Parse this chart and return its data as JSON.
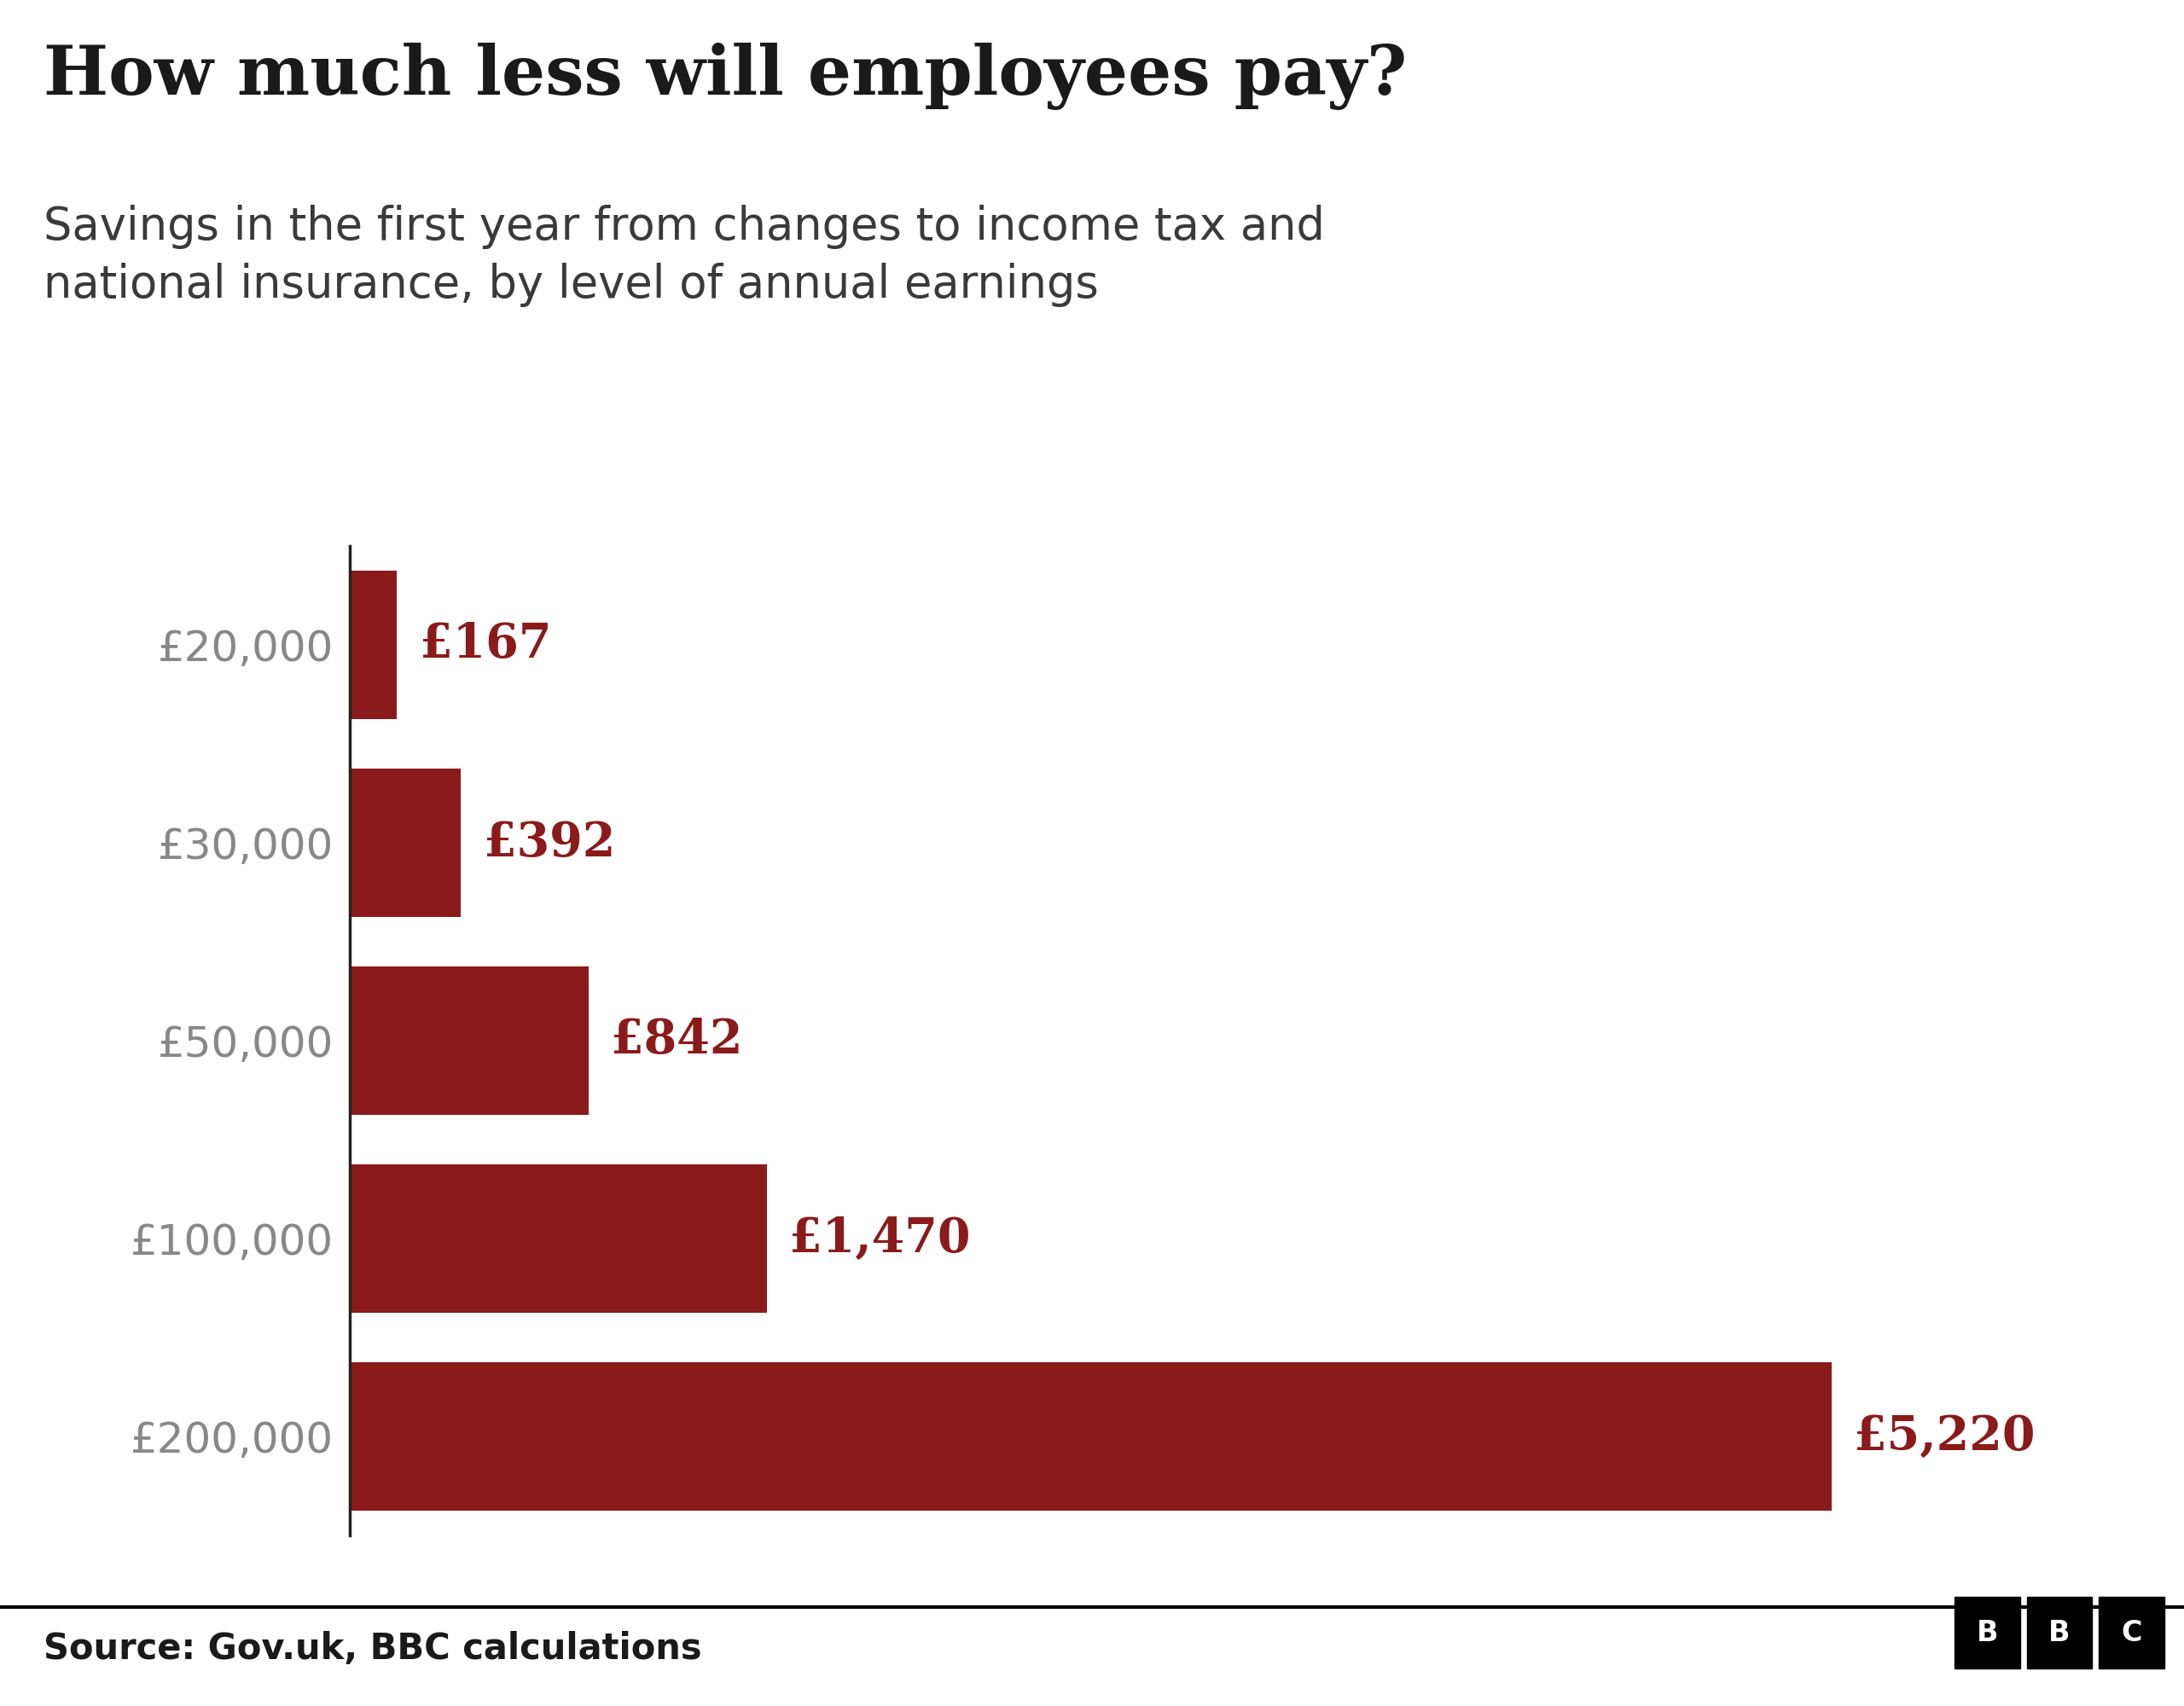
{
  "title": "How much less will employees pay?",
  "subtitle": "Savings in the first year from changes to income tax and\nnational insurance, by level of annual earnings",
  "categories": [
    "£20,000",
    "£30,000",
    "£50,000",
    "£100,000",
    "£200,000"
  ],
  "values": [
    167,
    392,
    842,
    1470,
    5220
  ],
  "value_labels": [
    "£167",
    "£392",
    "£842",
    "£1,470",
    "£5,220"
  ],
  "bar_color": "#8B1A1A",
  "label_color": "#8B1A1A",
  "title_color": "#1a1a1a",
  "subtitle_color": "#3a3a3a",
  "tick_color": "#888888",
  "source_text": "Source: Gov.uk, BBC calculations",
  "background_color": "#ffffff",
  "title_fontsize": 58,
  "subtitle_fontsize": 38,
  "tick_fontsize": 36,
  "label_fontsize": 40,
  "source_fontsize": 30,
  "xlim": [
    0,
    6000
  ],
  "bar_height": 0.75
}
